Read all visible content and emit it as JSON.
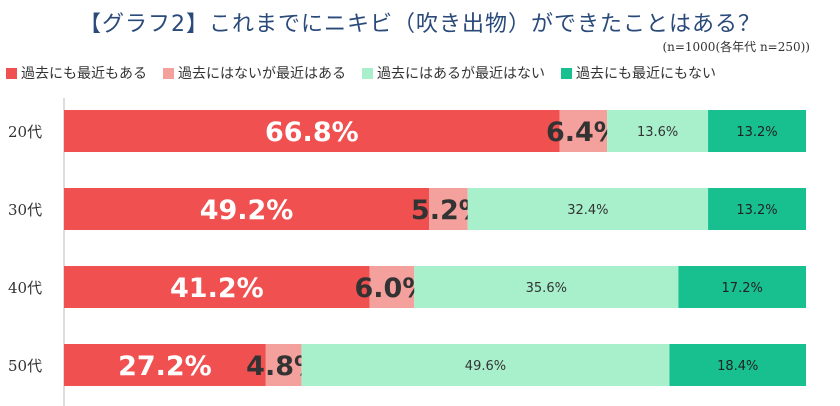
{
  "title": "【グラフ2】これまでにニキビ（吹き出物）ができたことはある？",
  "subtitle": "(n=1000(各年代 n=250))",
  "colors": [
    "#f05050",
    "#f4a09c",
    "#a8f0cc",
    "#18c090"
  ],
  "label_colors": [
    "#ffffff",
    "#333333",
    "#333333",
    "#222222"
  ],
  "chart_data": {
    "type": "bar",
    "orientation": "horizontal",
    "stacked": true,
    "title": "【グラフ2】これまでにニキビ（吹き出物）ができたことはある？",
    "xlim": [
      0,
      100
    ],
    "categories": [
      "20代",
      "30代",
      "40代",
      "50代"
    ],
    "legend_position": "top",
    "series": [
      {
        "name": "過去にも最近もある",
        "values": [
          66.8,
          49.2,
          41.2,
          27.2
        ],
        "labels": [
          "66.8%",
          "49.2%",
          "41.2%",
          "27.2%"
        ]
      },
      {
        "name": "過去にはないが最近はある",
        "values": [
          6.4,
          5.2,
          6.0,
          4.8
        ],
        "labels": [
          "6.4%",
          "5.2%",
          "6.0%",
          "4.8%"
        ]
      },
      {
        "name": "過去にはあるが最近はない",
        "values": [
          13.6,
          32.4,
          35.6,
          49.6
        ],
        "labels": [
          "13.6%",
          "32.4%",
          "35.6%",
          "49.6%"
        ]
      },
      {
        "name": "過去にも最近にもない",
        "values": [
          13.2,
          13.2,
          17.2,
          18.4
        ],
        "labels": [
          "13.2%",
          "13.2%",
          "17.2%",
          "18.4%"
        ]
      }
    ]
  }
}
